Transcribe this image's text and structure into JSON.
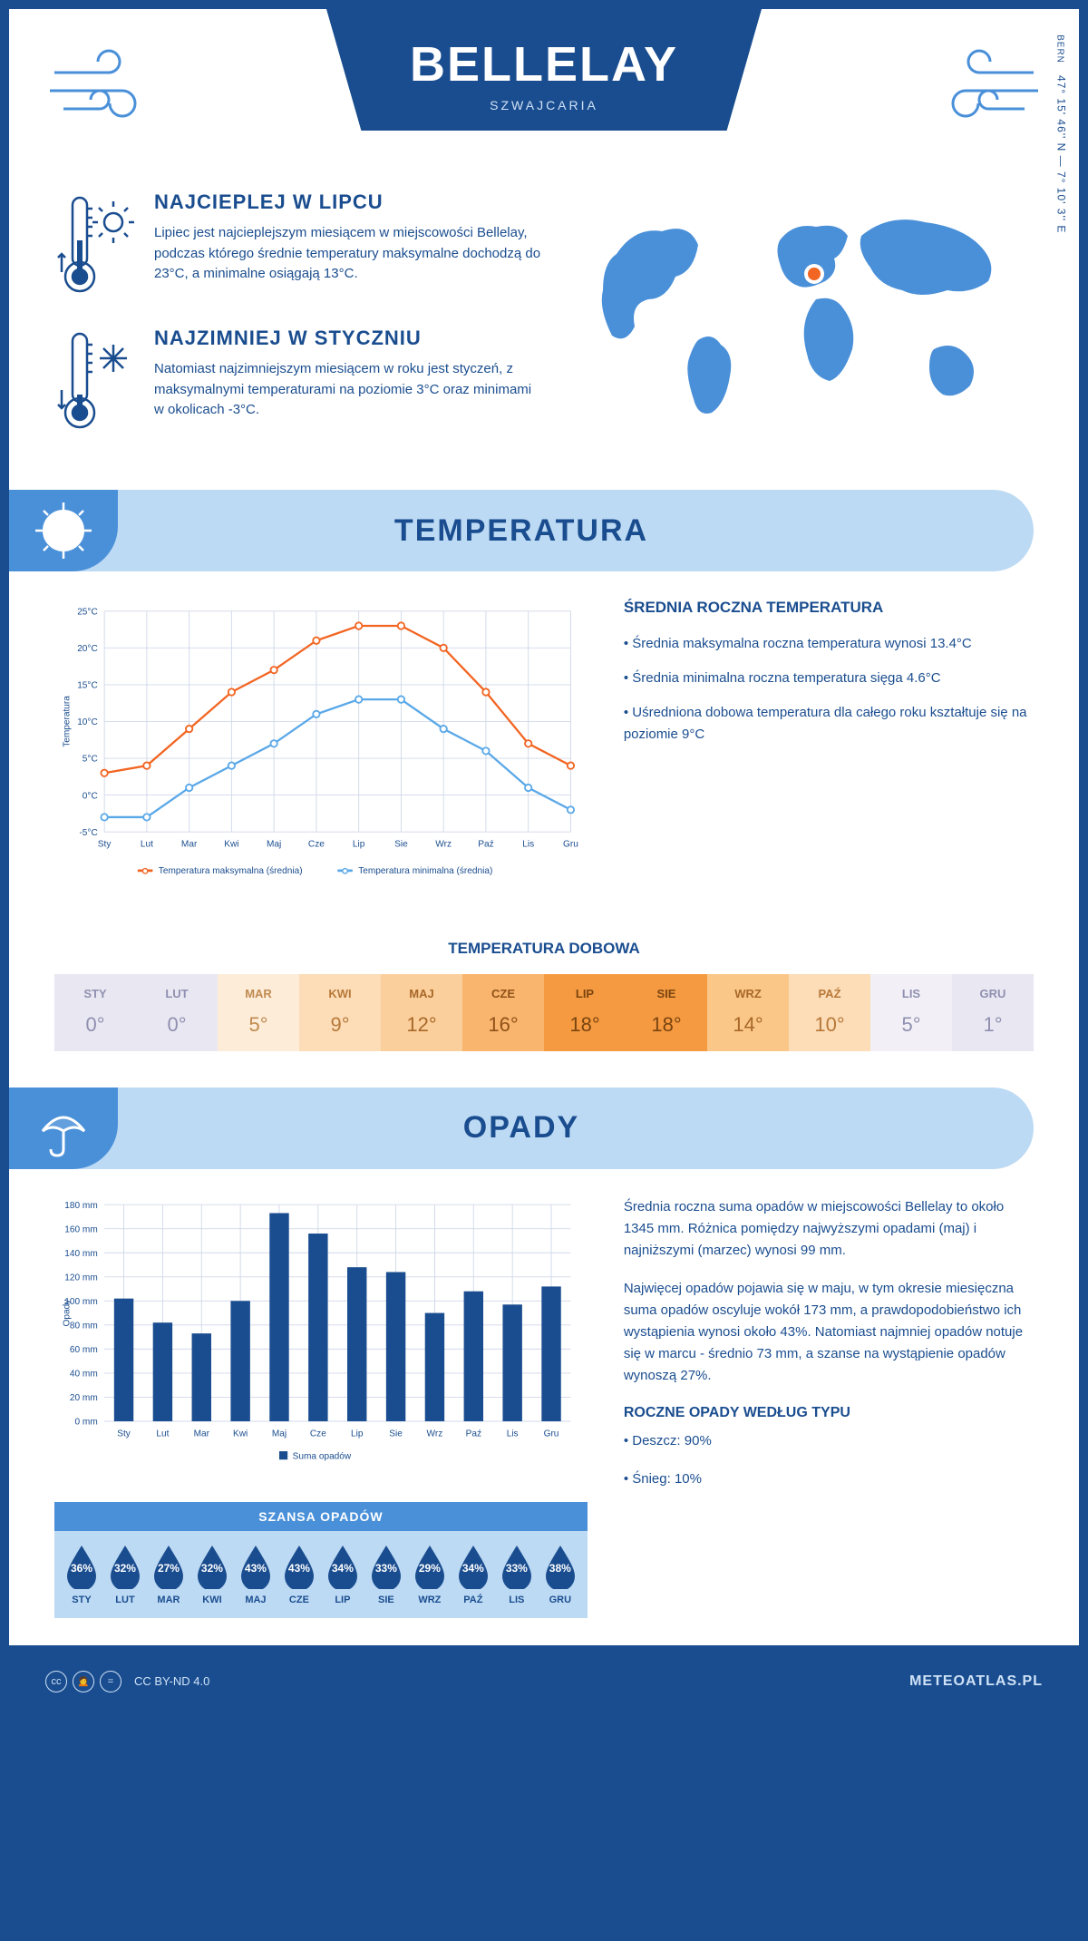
{
  "header": {
    "title": "BELLELAY",
    "subtitle": "SZWAJCARIA"
  },
  "intro": {
    "warmest": {
      "heading": "NAJCIEPLEJ W LIPCU",
      "text": "Lipiec jest najcieplejszym miesiącem w miejscowości Bellelay, podczas którego średnie temperatury maksymalne dochodzą do 23°C, a minimalne osiągają 13°C."
    },
    "coldest": {
      "heading": "NAJZIMNIEJ W STYCZNIU",
      "text": "Natomiast najzimniejszym miesiącem w roku jest styczeń, z maksymalnymi temperaturami na poziomie 3°C oraz minimami w okolicach -3°C."
    },
    "coords": "47° 15' 46'' N — 7° 10' 3'' E",
    "coords_city": "BERN"
  },
  "temperature": {
    "section_title": "TEMPERATURA",
    "chart": {
      "months": [
        "Sty",
        "Lut",
        "Mar",
        "Kwi",
        "Maj",
        "Cze",
        "Lip",
        "Sie",
        "Wrz",
        "Paź",
        "Lis",
        "Gru"
      ],
      "max_series": [
        3,
        4,
        9,
        14,
        17,
        21,
        23,
        23,
        20,
        14,
        7,
        4
      ],
      "min_series": [
        -3,
        -3,
        1,
        4,
        7,
        11,
        13,
        13,
        9,
        6,
        1,
        -2
      ],
      "max_color": "#f26522",
      "min_color": "#5aa8e8",
      "ylabel": "Temperatura",
      "ytick_min": -5,
      "ytick_max": 25,
      "ytick_step": 5,
      "ytick_suffix": "°C",
      "legend_max": "Temperatura maksymalna (średnia)",
      "legend_min": "Temperatura minimalna (średnia)",
      "grid_color": "#d0d8e8",
      "plot_bg": "#ffffff"
    },
    "side": {
      "heading": "ŚREDNIA ROCZNA TEMPERATURA",
      "bullets": [
        "• Średnia maksymalna roczna temperatura wynosi 13.4°C",
        "• Średnia minimalna roczna temperatura sięga 4.6°C",
        "• Uśredniona dobowa temperatura dla całego roku kształtuje się na poziomie 9°C"
      ]
    },
    "daily": {
      "title": "TEMPERATURA DOBOWA",
      "months": [
        "STY",
        "LUT",
        "MAR",
        "KWI",
        "MAJ",
        "CZE",
        "LIP",
        "SIE",
        "WRZ",
        "PAŹ",
        "LIS",
        "GRU"
      ],
      "values": [
        "0°",
        "0°",
        "5°",
        "9°",
        "12°",
        "16°",
        "18°",
        "18°",
        "14°",
        "10°",
        "5°",
        "1°"
      ],
      "bg_colors": [
        "#e9e8f2",
        "#e9e8f2",
        "#fdecd8",
        "#fcddb8",
        "#fbcf9c",
        "#f9b46d",
        "#f59a40",
        "#f59a40",
        "#fac789",
        "#fcddb8",
        "#f2f0f6",
        "#e9e8f2"
      ],
      "text_colors": [
        "#8f8fb0",
        "#8f8fb0",
        "#c08a50",
        "#b87838",
        "#a86828",
        "#8f5218",
        "#7a4510",
        "#7a4510",
        "#a86828",
        "#b87838",
        "#8f8fb0",
        "#8f8fb0"
      ]
    }
  },
  "precipitation": {
    "section_title": "OPADY",
    "chart": {
      "months": [
        "Sty",
        "Lut",
        "Mar",
        "Kwi",
        "Maj",
        "Cze",
        "Lip",
        "Sie",
        "Wrz",
        "Paź",
        "Lis",
        "Gru"
      ],
      "values": [
        102,
        82,
        73,
        100,
        173,
        156,
        128,
        124,
        90,
        108,
        97,
        112
      ],
      "bar_color": "#1a4d8f",
      "ylabel": "Opady",
      "ymax": 180,
      "ytick_step": 20,
      "ytick_suffix": " mm",
      "legend": "Suma opadów",
      "grid_color": "#d0d8e8"
    },
    "side": {
      "p1": "Średnia roczna suma opadów w miejscowości Bellelay to około 1345 mm. Różnica pomiędzy najwyższymi opadami (maj) i najniższymi (marzec) wynosi 99 mm.",
      "p2": "Najwięcej opadów pojawia się w maju, w tym okresie miesięczna suma opadów oscyluje wokół 173 mm, a prawdopodobieństwo ich wystąpienia wynosi około 43%. Natomiast najmniej opadów notuje się w marcu - średnio 73 mm, a szanse na wystąpienie opadów wynoszą 27%.",
      "type_heading": "ROCZNE OPADY WEDŁUG TYPU",
      "type_bullets": [
        "• Deszcz: 90%",
        "• Śnieg: 10%"
      ]
    },
    "chance": {
      "title": "SZANSA OPADÓW",
      "months": [
        "STY",
        "LUT",
        "MAR",
        "KWI",
        "MAJ",
        "CZE",
        "LIP",
        "SIE",
        "WRZ",
        "PAŹ",
        "LIS",
        "GRU"
      ],
      "values": [
        "36%",
        "32%",
        "27%",
        "32%",
        "43%",
        "43%",
        "34%",
        "33%",
        "29%",
        "34%",
        "33%",
        "38%"
      ],
      "drop_color": "#1a4d8f",
      "bg": "#bddaf4"
    }
  },
  "footer": {
    "license": "CC BY-ND 4.0",
    "brand": "METEOATLAS.PL"
  },
  "colors": {
    "primary": "#1a4d8f",
    "light_blue": "#bddaf4",
    "mid_blue": "#4a90d9",
    "map_blue": "#4a90d9",
    "marker": "#f26522"
  }
}
